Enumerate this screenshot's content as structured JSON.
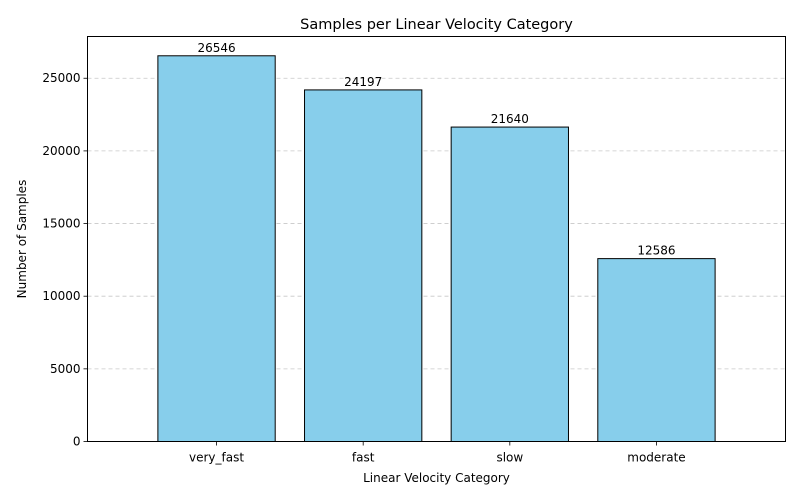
{
  "chart_data": {
    "type": "bar",
    "title": "Samples per Linear Velocity Category",
    "xlabel": "Linear Velocity Category",
    "ylabel": "Number of Samples",
    "categories": [
      "very_fast",
      "fast",
      "slow",
      "moderate"
    ],
    "values": [
      26546,
      24197,
      21640,
      12586
    ],
    "ylim": [
      0,
      27873
    ],
    "yticks": [
      0,
      5000,
      10000,
      15000,
      20000,
      25000
    ],
    "grid": true,
    "bar_color": "#87ceeb",
    "bar_edge_color": "#000000",
    "grid_color": "#c8c8c8"
  }
}
